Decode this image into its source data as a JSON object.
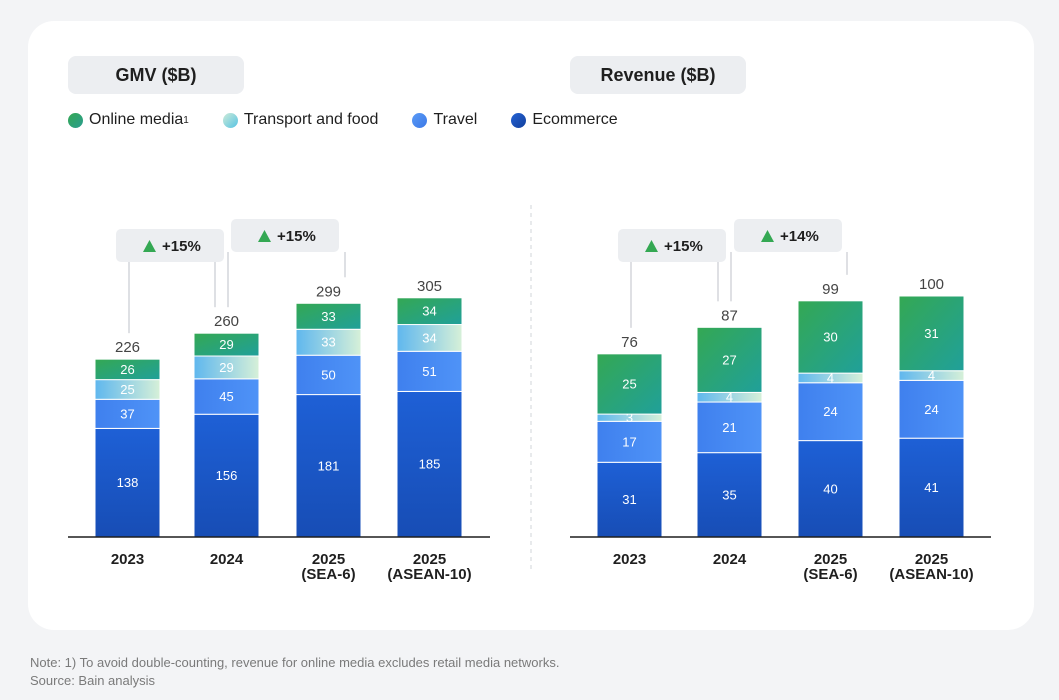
{
  "colors": {
    "online_media": "#2aa872",
    "transport_food": "#7fd2e6",
    "travel": "#4285f4",
    "ecommerce": "#1a58c9",
    "growth_arrow": "#34a853"
  },
  "legend": [
    {
      "label": "Online media",
      "sup": "1",
      "color": "#2aa872",
      "icon": "online-media-dot-icon"
    },
    {
      "label": "Transport and food",
      "sup": "",
      "color": "#7fd2e6",
      "icon": "transport-food-dot-icon"
    },
    {
      "label": "Travel",
      "sup": "",
      "color": "#4285f4",
      "icon": "travel-dot-icon"
    },
    {
      "label": "Ecommerce",
      "sup": "",
      "color": "#1a58c9",
      "icon": "ecommerce-dot-icon"
    }
  ],
  "chart_data": [
    {
      "type": "bar",
      "stacked": true,
      "title": "GMV ($B)",
      "categories": [
        "2023",
        "2024",
        "2025 (SEA-6)",
        "2025 (ASEAN-10)"
      ],
      "category_lines": [
        [
          "2023"
        ],
        [
          "2024"
        ],
        [
          "2025",
          "(SEA-6)"
        ],
        [
          "2025",
          "(ASEAN-10)"
        ]
      ],
      "series": [
        {
          "name": "Ecommerce",
          "values": [
            138,
            156,
            181,
            185
          ]
        },
        {
          "name": "Travel",
          "values": [
            37,
            45,
            50,
            51
          ]
        },
        {
          "name": "Transport and food",
          "values": [
            25,
            29,
            33,
            34
          ]
        },
        {
          "name": "Online media",
          "values": [
            26,
            29,
            33,
            34
          ]
        }
      ],
      "totals": [
        226,
        260,
        299,
        305
      ],
      "growth": [
        {
          "from": "2023",
          "to": "2024",
          "label": "+15%"
        },
        {
          "from": "2024",
          "to": "2025 (SEA-6)",
          "label": "+15%"
        }
      ]
    },
    {
      "type": "bar",
      "stacked": true,
      "title": "Revenue ($B)",
      "categories": [
        "2023",
        "2024",
        "2025 (SEA-6)",
        "2025 (ASEAN-10)"
      ],
      "category_lines": [
        [
          "2023"
        ],
        [
          "2024"
        ],
        [
          "2025",
          "(SEA-6)"
        ],
        [
          "2025",
          "(ASEAN-10)"
        ]
      ],
      "series": [
        {
          "name": "Ecommerce",
          "values": [
            31,
            35,
            40,
            41
          ]
        },
        {
          "name": "Travel",
          "values": [
            17,
            21,
            24,
            24
          ]
        },
        {
          "name": "Transport and food",
          "values": [
            3,
            4,
            4,
            4
          ]
        },
        {
          "name": "Online media",
          "values": [
            25,
            27,
            30,
            31
          ]
        }
      ],
      "totals": [
        76,
        87,
        99,
        100
      ],
      "growth": [
        {
          "from": "2023",
          "to": "2024",
          "label": "+15%"
        },
        {
          "from": "2024",
          "to": "2025 (SEA-6)",
          "label": "+14%"
        }
      ]
    }
  ],
  "notes": {
    "note": "Note: 1) To avoid double-counting, revenue for online media excludes retail media networks.",
    "source": "Source: Bain analysis"
  }
}
